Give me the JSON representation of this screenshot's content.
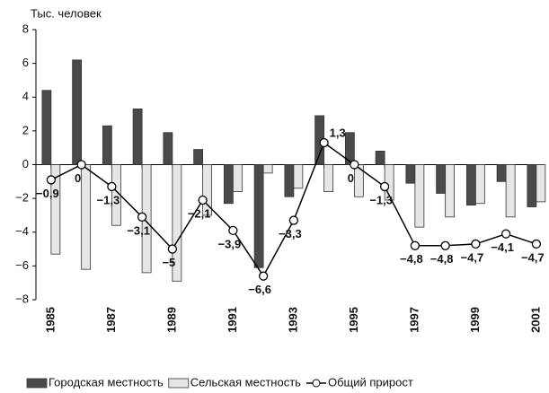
{
  "chart_data": {
    "type": "bar_line",
    "y_label": "Тыс. человек",
    "categories": [
      "1985",
      null,
      "1987",
      null,
      "1989",
      null,
      "1991",
      null,
      "1993",
      null,
      "1995",
      null,
      "1997",
      null,
      "1999",
      null,
      "2001"
    ],
    "series": [
      {
        "name": "Городская местность",
        "type": "bar",
        "color": "#4a4a4a",
        "values": [
          4.4,
          6.2,
          2.3,
          3.3,
          1.9,
          0.9,
          -2.3,
          -6.1,
          -1.9,
          2.9,
          1.9,
          0.8,
          -1.1,
          -1.7,
          -2.4,
          -1.0,
          -2.5
        ]
      },
      {
        "name": "Сельская местность",
        "type": "bar",
        "color": "#e6e6e6",
        "values": [
          -5.3,
          -6.2,
          -3.6,
          -6.4,
          -6.9,
          -3.0,
          -1.6,
          -0.5,
          -1.4,
          -1.6,
          -1.9,
          -2.1,
          -3.7,
          -3.1,
          -2.3,
          -3.1,
          -2.2
        ]
      },
      {
        "name": "Общий прирост",
        "type": "line",
        "color": "#000000",
        "values": [
          -0.9,
          0,
          -1.3,
          -3.1,
          -5,
          -2.1,
          -3.9,
          -6.6,
          -3.3,
          1.3,
          0,
          -1.3,
          -4.8,
          -4.8,
          -4.7,
          -4.1,
          -4.7
        ],
        "value_labels": [
          "−0,9",
          "0",
          "−1,3",
          "−3,1",
          "−5",
          "−2,1",
          "−3,9",
          "−6,6",
          "−3,3",
          "1,3",
          "0",
          "−1,3",
          "−4,8",
          "−4,8",
          "−4,7",
          "−4,1",
          "−4,7"
        ]
      }
    ],
    "ylim": [
      -8,
      8
    ],
    "yticks": [
      {
        "value": -8,
        "label": "−8"
      },
      {
        "value": -6,
        "label": "−6"
      },
      {
        "value": -4,
        "label": "−4"
      },
      {
        "value": -2,
        "label": "−2"
      },
      0,
      2,
      4,
      6,
      8
    ],
    "grid": false,
    "legend": "bottom"
  }
}
